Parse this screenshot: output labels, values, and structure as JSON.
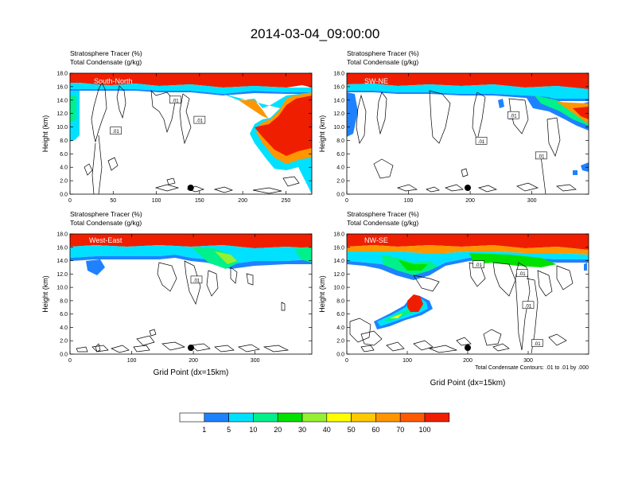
{
  "title": "2014-03-04_09:00:00",
  "field_labels": [
    "Stratosphere Tracer   (%)",
    "Total Condensate   (g/kg)"
  ],
  "ylabel": "Height (km)",
  "xlabel": "Grid Point (dx=15km)",
  "contour_note": "Total Condensate Contours: .01 to .01 by .000",
  "contour_label": ".01",
  "colorbar": {
    "levels": [
      "1",
      "5",
      "10",
      "20",
      "30",
      "40",
      "50",
      "60",
      "70",
      "100"
    ],
    "colors": [
      "#ffffff",
      "#1e82ff",
      "#00e1ff",
      "#00f08c",
      "#00e100",
      "#96f032",
      "#ffff00",
      "#ffc800",
      "#ff9600",
      "#ff5a00",
      "#f01e00"
    ]
  },
  "chart_data": [
    {
      "type": "heatmap",
      "panel": "South-North",
      "title": "South-North",
      "xlabel": "",
      "ylabel": "Height (km)",
      "xlim": [
        0,
        280
      ],
      "ylim": [
        0,
        18
      ],
      "xticks": [
        0,
        50,
        100,
        150,
        200,
        250
      ],
      "yticks": [
        0.0,
        2.0,
        4.0,
        6.0,
        8.0,
        10.0,
        12.0,
        14.0,
        16.0,
        18.0
      ],
      "marker_x": 140,
      "contour_labels": [
        {
          "x": 122,
          "y": 14.0
        },
        {
          "x": 150,
          "y": 11.0
        },
        {
          "x": 53,
          "y": 9.4
        }
      ]
    },
    {
      "type": "heatmap",
      "panel": "SW-NE",
      "title": "SW-NE",
      "xlabel": "",
      "ylabel": "Height (km)",
      "xlim": [
        0,
        392
      ],
      "ylim": [
        0,
        18
      ],
      "xticks": [
        0,
        100,
        200,
        300
      ],
      "yticks": [
        0.0,
        2.0,
        4.0,
        6.0,
        8.0,
        10.0,
        12.0,
        14.0,
        16.0,
        18.0
      ],
      "marker_x": 200,
      "contour_labels": [
        {
          "x": 270,
          "y": 11.7
        },
        {
          "x": 218,
          "y": 7.9
        },
        {
          "x": 315,
          "y": 5.7
        }
      ]
    },
    {
      "type": "heatmap",
      "panel": "West-East",
      "title": "West-East",
      "xlabel": "Grid Point (dx=15km)",
      "ylabel": "Height (km)",
      "xlim": [
        0,
        392
      ],
      "ylim": [
        0,
        18
      ],
      "xticks": [
        0,
        100,
        200,
        300
      ],
      "yticks": [
        0.0,
        2.0,
        4.0,
        6.0,
        8.0,
        10.0,
        12.0,
        14.0,
        16.0,
        18.0
      ],
      "marker_x": 200,
      "contour_labels": [
        {
          "x": 205,
          "y": 11.1
        }
      ]
    },
    {
      "type": "heatmap",
      "panel": "NW-SE",
      "title": "NW-SE",
      "xlabel": "Grid Point (dx=15km)",
      "ylabel": "Height (km)",
      "xlim": [
        0,
        400
      ],
      "ylim": [
        0,
        18
      ],
      "xticks": [
        0,
        100,
        200,
        300
      ],
      "yticks": [
        0.0,
        2.0,
        4.0,
        6.0,
        8.0,
        10.0,
        12.0,
        14.0,
        16.0,
        18.0
      ],
      "marker_x": 200,
      "contour_labels": [
        {
          "x": 218,
          "y": 13.4
        },
        {
          "x": 290,
          "y": 12.1
        },
        {
          "x": 300,
          "y": 7.3
        },
        {
          "x": 315,
          "y": 1.6
        }
      ]
    }
  ]
}
